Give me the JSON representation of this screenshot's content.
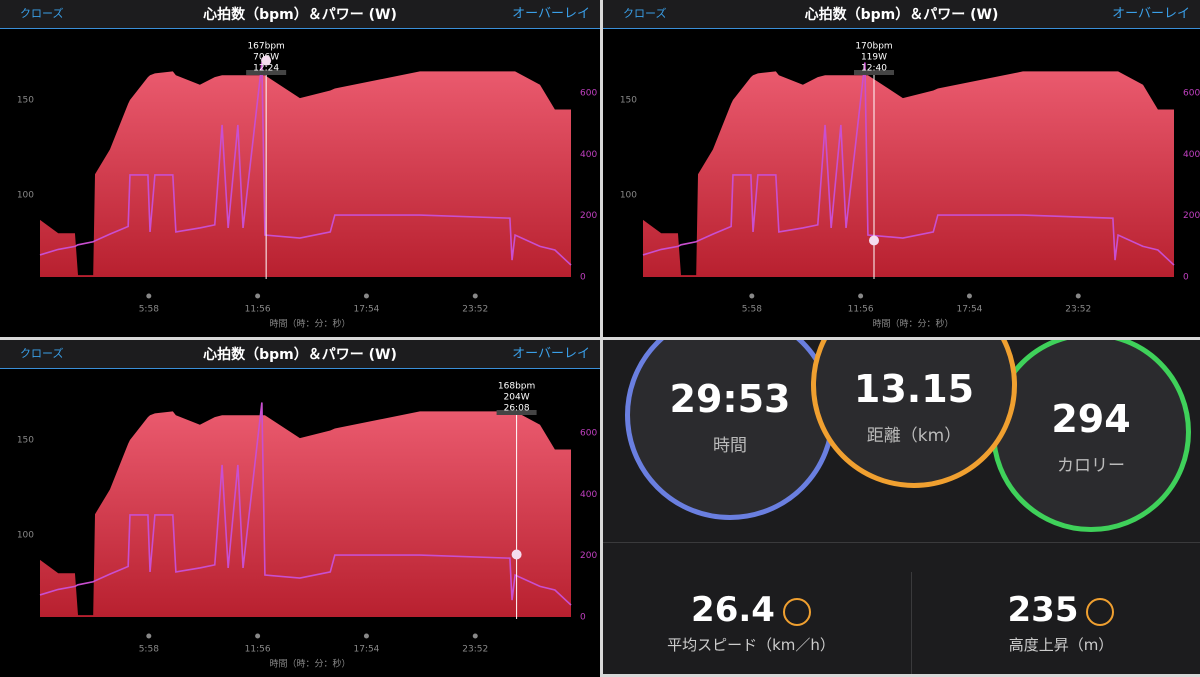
{
  "header": {
    "close": "クローズ",
    "title": "心拍数（bpm）＆パワー (W)",
    "overlay": "オーバーレイ"
  },
  "chart_data": {
    "type": "area",
    "x_label": "時間（時：分：秒）",
    "x": [
      0,
      60,
      115,
      125,
      175,
      181,
      230,
      290,
      296,
      355,
      362,
      378,
      437,
      447,
      526,
      575,
      599,
      619,
      651,
      668,
      730,
      740,
      855,
      955,
      970,
      1250,
      1546,
      1553,
      1563,
      1645,
      1694,
      1747
    ],
    "xlim": [
      0,
      1747
    ],
    "xticks": [
      {
        "value": 358,
        "label": "5:58"
      },
      {
        "value": 716,
        "label": "11:56"
      },
      {
        "value": 1074,
        "label": "17:54"
      },
      {
        "value": 1432,
        "label": "23:52"
      }
    ],
    "ylim": [
      57,
      171
    ],
    "yticks": [
      100,
      150
    ],
    "y2lim": [
      0,
      708
    ],
    "y2ticks": [
      0,
      200,
      400,
      600
    ],
    "series": [
      {
        "name": "心拍数",
        "color": "#e0495c",
        "values": [
          87,
          80,
          80,
          58,
          58,
          111,
          124,
          148,
          150,
          162,
          163,
          164,
          165,
          163,
          158,
          162,
          163,
          163,
          163,
          163,
          163,
          163,
          151,
          155,
          156,
          165,
          165,
          165,
          165,
          158,
          145,
          145
        ]
      },
      {
        "name": "パワー",
        "color": "#c94fd0",
        "axis": "y2",
        "values": [
          72,
          90,
          100,
          105,
          115,
          118,
          140,
          165,
          333,
          333,
          147,
          333,
          333,
          147,
          160,
          170,
          496,
          160,
          496,
          160,
          700,
          137,
          127,
          147,
          202,
          202,
          192,
          55,
          137,
          100,
          88,
          39
        ]
      }
    ],
    "cursors": [
      {
        "time": {
          "value": 744,
          "label": "12:24"
        },
        "hr": {
          "value": 167,
          "label": "167bpm"
        },
        "power": {
          "value": 706,
          "label": "706W"
        }
      },
      {
        "time": {
          "value": 760,
          "label": "12:40"
        },
        "hr": {
          "value": 170,
          "label": "170bpm"
        },
        "power": {
          "value": 119,
          "label": "119W"
        }
      },
      {
        "time": {
          "value": 1568,
          "label": "26:08"
        },
        "hr": {
          "value": 168,
          "label": "168bpm"
        },
        "power": {
          "value": 204,
          "label": "204W"
        }
      }
    ]
  },
  "stats": {
    "time": {
      "value": "29:53",
      "label": "時間"
    },
    "distance": {
      "value": "13.15",
      "label": "距離（km）"
    },
    "calories": {
      "value": "294",
      "label": "カロリー"
    },
    "avg_speed": {
      "value": "26.4",
      "label": "平均スピード（km／h）"
    },
    "elevation_gain": {
      "value": "235",
      "label": "高度上昇（m）"
    }
  }
}
